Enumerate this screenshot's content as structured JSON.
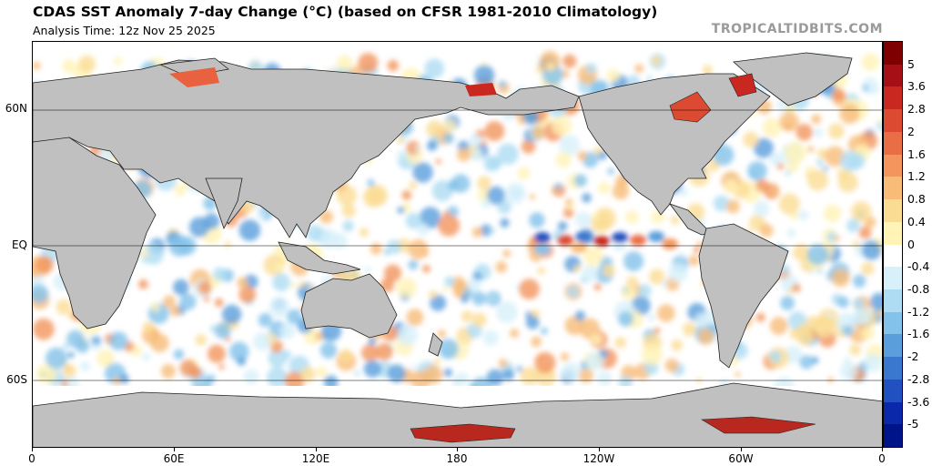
{
  "header": {
    "title": "CDAS SST Anomaly 7-day Change (°C) (based on CFSR 1981-2010 Climatology)",
    "analysis_time": "Analysis Time: 12z Nov 25 2025",
    "credit": "TROPICALTIDBITS.COM"
  },
  "map": {
    "lat_labels": [
      "60N",
      "EQ",
      "60S"
    ],
    "lon_labels": [
      "0",
      "60E",
      "120E",
      "180",
      "120W",
      "60W",
      "0"
    ],
    "land_color": "#c0c0c0",
    "ocean_neutral_color": "#ffffff"
  },
  "colorbar": {
    "labels": [
      "5",
      "3.6",
      "2.8",
      "2",
      "1.6",
      "1.2",
      "0.8",
      "0.4",
      "0",
      "-0.4",
      "-0.8",
      "-1.2",
      "-1.6",
      "-2",
      "-2.8",
      "-3.6",
      "-5"
    ],
    "colors": [
      "#7f0000",
      "#a50f15",
      "#c8281f",
      "#dc4a32",
      "#ea6e45",
      "#f3955c",
      "#f8bb78",
      "#fbdc93",
      "#fff3b5",
      "#ffffff",
      "#d7f0fa",
      "#aedcf3",
      "#83c2ea",
      "#5a9fdc",
      "#3a78cf",
      "#2150c0",
      "#0a28aa",
      "#00148a"
    ]
  }
}
